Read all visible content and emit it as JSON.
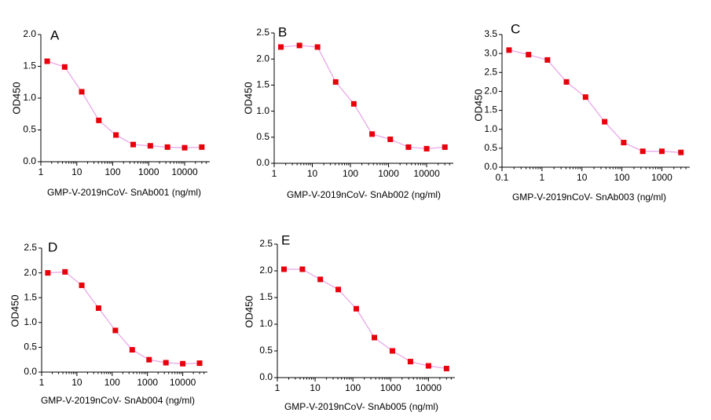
{
  "panels": [
    {
      "letter": "A",
      "xlabel": "GMP-V-2019nCoV- SnAb001 (ng/ml)",
      "ylabel": "OD450"
    },
    {
      "letter": "B",
      "xlabel": "GMP-V-2019nCoV- SnAb002 (ng/ml)",
      "ylabel": "OD450"
    },
    {
      "letter": "C",
      "xlabel": "GMP-V-2019nCoV- SnAb003 (ng/ml)",
      "ylabel": "OD450"
    },
    {
      "letter": "D",
      "xlabel": "GMP-V-2019nCoV- SnAb004 (ng/ml)",
      "ylabel": "OD450"
    },
    {
      "letter": "E",
      "xlabel": "GMP-V-2019nCoV- SnAb005 (ng/ml)",
      "ylabel": "OD450"
    }
  ],
  "chart_data": [
    {
      "type": "line",
      "title": "A",
      "xlabel": "GMP-V-2019nCoV- SnAb001 (ng/ml)",
      "ylabel": "OD450",
      "xscale": "log",
      "xlim": [
        1,
        50000
      ],
      "ylim": [
        0,
        2.0
      ],
      "xticks": [
        1,
        10,
        100,
        1000,
        10000
      ],
      "xticklabels": [
        "1",
        "10",
        "100",
        "1000",
        "10000"
      ],
      "yticks": [
        0,
        0.5,
        1.0,
        1.5,
        2.0
      ],
      "yticklabels": [
        "0.0",
        "0.5",
        "1.0",
        "1.5",
        "2.0"
      ],
      "marker_color": "#e8000b",
      "line_color": "#e8a7e8",
      "series": [
        {
          "x": [
            1.5,
            4.6,
            13.7,
            41,
            123,
            370,
            1111,
            3333,
            10000,
            30000
          ],
          "y": [
            1.58,
            1.49,
            1.1,
            0.65,
            0.42,
            0.27,
            0.25,
            0.23,
            0.22,
            0.23
          ]
        }
      ]
    },
    {
      "type": "line",
      "title": "B",
      "xlabel": "GMP-V-2019nCoV- SnAb002 (ng/ml)",
      "ylabel": "OD450",
      "xscale": "log",
      "xlim": [
        1,
        50000
      ],
      "ylim": [
        0,
        2.5
      ],
      "xticks": [
        1,
        10,
        100,
        1000,
        10000
      ],
      "xticklabels": [
        "1",
        "10",
        "100",
        "1000",
        "10000"
      ],
      "yticks": [
        0,
        0.5,
        1.0,
        1.5,
        2.0,
        2.5
      ],
      "yticklabels": [
        "0.0",
        "0.5",
        "1.0",
        "1.5",
        "2.0",
        "2.5"
      ],
      "marker_color": "#e8000b",
      "line_color": "#e8a7e8",
      "series": [
        {
          "x": [
            1.5,
            4.6,
            13.7,
            41,
            123,
            370,
            1111,
            3333,
            10000,
            30000
          ],
          "y": [
            2.23,
            2.26,
            2.23,
            1.56,
            1.14,
            0.56,
            0.46,
            0.31,
            0.28,
            0.31
          ]
        }
      ]
    },
    {
      "type": "line",
      "title": "C",
      "xlabel": "GMP-V-2019nCoV- SnAb003 (ng/ml)",
      "ylabel": "OD450",
      "xscale": "log",
      "xlim": [
        0.1,
        5000
      ],
      "ylim": [
        0,
        3.5
      ],
      "xticks": [
        0.1,
        1,
        10,
        100,
        1000
      ],
      "xticklabels": [
        "0.1",
        "1",
        "10",
        "100",
        "1000"
      ],
      "yticks": [
        0,
        0.5,
        1.0,
        1.5,
        2.0,
        2.5,
        3.0,
        3.5
      ],
      "yticklabels": [
        "0.0",
        "0.5",
        "1.0",
        "1.5",
        "2.0",
        "2.5",
        "3.0",
        "3.5"
      ],
      "marker_color": "#e8000b",
      "line_color": "#e8a7e8",
      "series": [
        {
          "x": [
            0.15,
            0.46,
            1.37,
            4.1,
            12.3,
            37,
            111,
            333,
            1000,
            3000
          ],
          "y": [
            3.09,
            2.97,
            2.83,
            2.25,
            1.85,
            1.2,
            0.65,
            0.42,
            0.42,
            0.39
          ]
        }
      ]
    },
    {
      "type": "line",
      "title": "D",
      "xlabel": "GMP-V-2019nCoV- SnAb004 (ng/ml)",
      "ylabel": "OD450",
      "xscale": "log",
      "xlim": [
        1,
        50000
      ],
      "ylim": [
        0,
        2.5
      ],
      "xticks": [
        1,
        10,
        100,
        1000,
        10000
      ],
      "xticklabels": [
        "1",
        "10",
        "100",
        "1000",
        "10000"
      ],
      "yticks": [
        0,
        0.5,
        1.0,
        1.5,
        2.0,
        2.5
      ],
      "yticklabels": [
        "0.0",
        "0.5",
        "1.0",
        "1.5",
        "2.0",
        "2.5"
      ],
      "marker_color": "#e8000b",
      "line_color": "#e8a7e8",
      "series": [
        {
          "x": [
            1.5,
            4.6,
            13.7,
            41,
            123,
            370,
            1111,
            3333,
            10000,
            30000
          ],
          "y": [
            2.0,
            2.02,
            1.75,
            1.29,
            0.84,
            0.45,
            0.25,
            0.19,
            0.17,
            0.18
          ]
        }
      ]
    },
    {
      "type": "line",
      "title": "E",
      "xlabel": "GMP-V-2019nCoV- SnAb005 (ng/ml)",
      "ylabel": "OD450",
      "xscale": "log",
      "xlim": [
        1,
        50000
      ],
      "ylim": [
        0,
        2.5
      ],
      "xticks": [
        1,
        10,
        100,
        1000,
        10000
      ],
      "xticklabels": [
        "1",
        "10",
        "100",
        "1000",
        "10000"
      ],
      "yticks": [
        0,
        0.5,
        1.0,
        1.5,
        2.0,
        2.5
      ],
      "yticklabels": [
        "0.0",
        "0.5",
        "1.0",
        "1.5",
        "2.0",
        "2.5"
      ],
      "marker_color": "#e8000b",
      "line_color": "#e8a7e8",
      "series": [
        {
          "x": [
            1.5,
            4.6,
            13.7,
            41,
            123,
            370,
            1111,
            3333,
            10000,
            30000
          ],
          "y": [
            2.03,
            2.03,
            1.84,
            1.65,
            1.29,
            0.75,
            0.5,
            0.3,
            0.22,
            0.17
          ]
        }
      ]
    }
  ]
}
